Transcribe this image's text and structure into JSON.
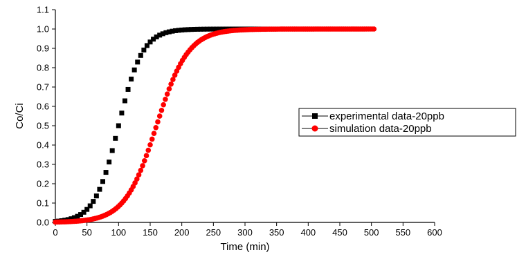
{
  "chart_data": {
    "type": "scatter",
    "xlabel": "Time (min)",
    "ylabel": "Co/Ci",
    "xlim": [
      0,
      600
    ],
    "ylim": [
      0.0,
      1.1
    ],
    "xticks": [
      "0",
      "50",
      "100",
      "150",
      "200",
      "250",
      "300",
      "350",
      "400",
      "450",
      "500",
      "550",
      "600"
    ],
    "yticks": [
      "0.0",
      "0.1",
      "0.2",
      "0.3",
      "0.4",
      "0.5",
      "0.6",
      "0.7",
      "0.8",
      "0.9",
      "1.0",
      "1.1"
    ],
    "grid": false,
    "legend_position": "right",
    "series": [
      {
        "name": "experimental data-20ppb",
        "marker": "square",
        "color": "#000000",
        "x_range": [
          0,
          500
        ],
        "x_step": 5,
        "curve": "sigmoid",
        "midpoint_x": 100,
        "scale": 19,
        "sample": [
          [
            0,
            0.005
          ],
          [
            50,
            0.07
          ],
          [
            75,
            0.21
          ],
          [
            100,
            0.5
          ],
          [
            125,
            0.79
          ],
          [
            150,
            0.93
          ],
          [
            200,
            0.99
          ],
          [
            250,
            1.0
          ],
          [
            500,
            1.0
          ]
        ]
      },
      {
        "name": "simulation data-20ppb",
        "marker": "circle",
        "color": "#ff0000",
        "x_range": [
          0,
          505
        ],
        "x_step": 3,
        "curve": "sigmoid",
        "midpoint_x": 160,
        "scale": 25,
        "sample": [
          [
            0,
            0.0
          ],
          [
            100,
            0.08
          ],
          [
            130,
            0.23
          ],
          [
            160,
            0.5
          ],
          [
            190,
            0.77
          ],
          [
            220,
            0.92
          ],
          [
            300,
            0.99
          ],
          [
            350,
            1.0
          ],
          [
            505,
            1.0
          ]
        ]
      }
    ]
  }
}
